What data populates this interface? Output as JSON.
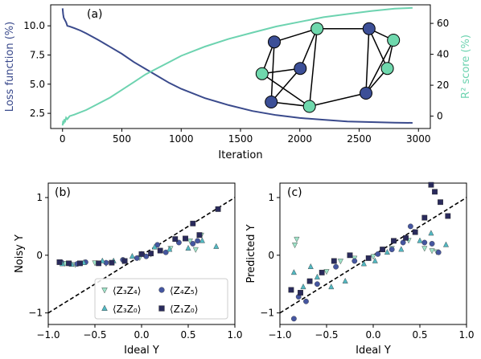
{
  "chart_data": [
    {
      "type": "line",
      "panel_label": "(a)",
      "xlabel": "Iteration",
      "ylabel_left": "Loss function (%)",
      "ylabel_right": "R² score (%)",
      "xlim": [
        -100,
        3100
      ],
      "ylim_left": [
        1.2,
        11.8
      ],
      "ylim_right": [
        -8,
        72
      ],
      "xticks": [
        "0",
        "500",
        "1000",
        "1500",
        "2000",
        "2500",
        "3000"
      ],
      "yticks_left": [
        "2.5",
        "5.0",
        "7.5",
        "10.0"
      ],
      "yticks_right": [
        "0",
        "20",
        "40",
        "60"
      ],
      "colors": {
        "loss": "#3a4a8c",
        "r2": "#6dd3b0"
      },
      "series": [
        {
          "name": "Loss function (%)",
          "axis": "left",
          "x": [
            0,
            5,
            10,
            20,
            30,
            40,
            60,
            100,
            150,
            200,
            300,
            400,
            500,
            600,
            700,
            800,
            900,
            1000,
            1200,
            1400,
            1600,
            1800,
            2000,
            2200,
            2400,
            2600,
            2800,
            2950
          ],
          "values": [
            11.5,
            11.0,
            10.7,
            10.5,
            10.3,
            10.0,
            9.95,
            9.8,
            9.6,
            9.35,
            8.8,
            8.2,
            7.6,
            6.9,
            6.3,
            5.7,
            5.1,
            4.6,
            3.8,
            3.2,
            2.7,
            2.35,
            2.1,
            1.95,
            1.8,
            1.75,
            1.7,
            1.68
          ]
        },
        {
          "name": "R² score (%)",
          "axis": "right",
          "x": [
            0,
            5,
            10,
            15,
            20,
            30,
            40,
            60,
            100,
            200,
            300,
            400,
            500,
            600,
            700,
            800,
            900,
            1000,
            1200,
            1400,
            1600,
            1800,
            2000,
            2200,
            2400,
            2600,
            2800,
            2950
          ],
          "values": [
            -6,
            -3,
            -5,
            -2,
            -4,
            -1,
            -2,
            0,
            1,
            4,
            8,
            12,
            17,
            22,
            27,
            31,
            35,
            39,
            45,
            50,
            54,
            58,
            61,
            64,
            66,
            68,
            69.5,
            70
          ]
        }
      ],
      "graph_nodes": [
        {
          "x": 0.1,
          "y": 0.22,
          "color": "dark"
        },
        {
          "x": 0.38,
          "y": 0.07,
          "color": "light"
        },
        {
          "x": 0.72,
          "y": 0.07,
          "color": "dark"
        },
        {
          "x": 0.88,
          "y": 0.2,
          "color": "light"
        },
        {
          "x": 0.02,
          "y": 0.58,
          "color": "light"
        },
        {
          "x": 0.27,
          "y": 0.52,
          "color": "dark"
        },
        {
          "x": 0.84,
          "y": 0.52,
          "color": "light"
        },
        {
          "x": 0.08,
          "y": 0.9,
          "color": "dark"
        },
        {
          "x": 0.33,
          "y": 0.95,
          "color": "light"
        },
        {
          "x": 0.7,
          "y": 0.8,
          "color": "dark"
        }
      ],
      "graph_edges": [
        [
          0,
          1
        ],
        [
          1,
          2
        ],
        [
          2,
          3
        ],
        [
          0,
          4
        ],
        [
          0,
          7
        ],
        [
          4,
          5
        ],
        [
          4,
          8
        ],
        [
          1,
          5
        ],
        [
          5,
          7
        ],
        [
          7,
          8
        ],
        [
          8,
          9
        ],
        [
          9,
          6
        ],
        [
          3,
          6
        ],
        [
          2,
          6
        ],
        [
          3,
          9
        ],
        [
          1,
          8
        ],
        [
          2,
          9
        ]
      ]
    },
    {
      "type": "scatter",
      "panel_label": "(b)",
      "xlabel": "Ideal Y",
      "ylabel": "Noisy Y",
      "xlim": [
        -1.0,
        1.0
      ],
      "ylim": [
        -1.2,
        1.25
      ],
      "xticks": [
        "−1.0",
        "−0.5",
        "0.0",
        "0.5",
        "1.0"
      ],
      "yticks": [
        "−1",
        "0",
        "1"
      ],
      "reference_line": "y = x (dashed)",
      "legend": {
        "placement": "lower-right",
        "entries": [
          {
            "label": "⟨Z₃Z₄⟩",
            "marker": "triangle-down",
            "color": "#9ee3c8"
          },
          {
            "label": "⟨Z₄Z₅⟩",
            "marker": "circle",
            "color": "#4556a0"
          },
          {
            "label": "⟨Z₃Z₀⟩",
            "marker": "triangle-up",
            "color": "#52b8c2"
          },
          {
            "label": "⟨Z₁Z₀⟩",
            "marker": "square",
            "color": "#2a2b5c"
          }
        ]
      },
      "series": [
        {
          "name": "⟨Z₃Z₄⟩",
          "marker": "triangle-down",
          "color": "#9ee3c8",
          "points": [
            [
              -0.82,
              -0.14
            ],
            [
              -0.71,
              -0.16
            ],
            [
              -0.5,
              -0.13
            ],
            [
              -0.38,
              -0.14
            ],
            [
              -0.2,
              -0.1
            ],
            [
              -0.02,
              -0.04
            ],
            [
              0.1,
              0.02
            ],
            [
              0.31,
              0.12
            ],
            [
              0.52,
              0.25
            ],
            [
              0.58,
              0.1
            ],
            [
              0.64,
              0.35
            ]
          ]
        },
        {
          "name": "⟨Z₄Z₅⟩",
          "marker": "circle",
          "color": "#4556a0",
          "points": [
            [
              -0.86,
              -0.12
            ],
            [
              -0.69,
              -0.15
            ],
            [
              -0.6,
              -0.12
            ],
            [
              -0.38,
              -0.13
            ],
            [
              -0.2,
              -0.08
            ],
            [
              -0.05,
              -0.05
            ],
            [
              0.05,
              -0.02
            ],
            [
              0.17,
              0.18
            ],
            [
              0.26,
              0.05
            ],
            [
              0.4,
              0.22
            ],
            [
              0.55,
              0.2
            ],
            [
              0.6,
              0.25
            ]
          ]
        },
        {
          "name": "⟨Z₃Z₀⟩",
          "marker": "triangle-up",
          "color": "#52b8c2",
          "points": [
            [
              -0.85,
              -0.15
            ],
            [
              -0.75,
              -0.16
            ],
            [
              -0.62,
              -0.13
            ],
            [
              -0.42,
              -0.1
            ],
            [
              -0.3,
              -0.1
            ],
            [
              -0.1,
              -0.02
            ],
            [
              0.0,
              0.02
            ],
            [
              0.14,
              0.14
            ],
            [
              0.3,
              0.1
            ],
            [
              0.5,
              0.12
            ],
            [
              0.65,
              0.25
            ],
            [
              0.8,
              0.15
            ]
          ]
        },
        {
          "name": "⟨Z₁Z₀⟩",
          "marker": "square",
          "color": "#2a2b5c",
          "points": [
            [
              -0.88,
              -0.12
            ],
            [
              -0.78,
              -0.14
            ],
            [
              -0.66,
              -0.14
            ],
            [
              -0.46,
              -0.14
            ],
            [
              -0.32,
              -0.13
            ],
            [
              -0.18,
              -0.1
            ],
            [
              0.0,
              0.02
            ],
            [
              0.1,
              0.03
            ],
            [
              0.2,
              0.08
            ],
            [
              0.36,
              0.28
            ],
            [
              0.47,
              0.29
            ],
            [
              0.55,
              0.55
            ],
            [
              0.62,
              0.35
            ],
            [
              0.82,
              0.8
            ]
          ]
        }
      ]
    },
    {
      "type": "scatter",
      "panel_label": "(c)",
      "xlabel": "Ideal Y",
      "ylabel": "Predicted Y",
      "xlim": [
        -1.0,
        1.0
      ],
      "ylim": [
        -1.2,
        1.25
      ],
      "xticks": [
        "−1.0",
        "−0.5",
        "0.0",
        "0.5",
        "1.0"
      ],
      "yticks": [
        "−1",
        "0",
        "1"
      ],
      "reference_line": "y = x (dashed)",
      "series": [
        {
          "name": "⟨Z₃Z₄⟩",
          "marker": "triangle-down",
          "color": "#9ee3c8",
          "points": [
            [
              -0.82,
              0.28
            ],
            [
              -0.84,
              0.18
            ],
            [
              -0.5,
              -0.28
            ],
            [
              -0.35,
              -0.1
            ],
            [
              -0.2,
              -0.05
            ],
            [
              0.0,
              -0.02
            ],
            [
              0.2,
              0.12
            ],
            [
              0.38,
              0.26
            ],
            [
              0.55,
              0.12
            ],
            [
              0.63,
              0.08
            ],
            [
              0.68,
              0.06
            ]
          ]
        },
        {
          "name": "⟨Z₄Z₅⟩",
          "marker": "circle",
          "color": "#4556a0",
          "points": [
            [
              -0.85,
              -1.1
            ],
            [
              -0.8,
              -0.72
            ],
            [
              -0.72,
              -0.8
            ],
            [
              -0.6,
              -0.5
            ],
            [
              -0.4,
              -0.2
            ],
            [
              -0.2,
              -0.1
            ],
            [
              0.05,
              0.02
            ],
            [
              0.2,
              0.1
            ],
            [
              0.32,
              0.22
            ],
            [
              0.4,
              0.5
            ],
            [
              0.55,
              0.22
            ],
            [
              0.63,
              0.2
            ],
            [
              0.7,
              0.05
            ]
          ]
        },
        {
          "name": "⟨Z₃Z₀⟩",
          "marker": "triangle-up",
          "color": "#52b8c2",
          "points": [
            [
              -0.85,
              -0.3
            ],
            [
              -0.75,
              -0.55
            ],
            [
              -0.67,
              -0.2
            ],
            [
              -0.6,
              -0.38
            ],
            [
              -0.45,
              -0.55
            ],
            [
              -0.3,
              -0.45
            ],
            [
              -0.1,
              -0.15
            ],
            [
              0.02,
              -0.1
            ],
            [
              0.15,
              0.05
            ],
            [
              0.3,
              0.1
            ],
            [
              0.5,
              0.25
            ],
            [
              0.62,
              0.38
            ],
            [
              0.78,
              0.18
            ]
          ]
        },
        {
          "name": "⟨Z₁Z₀⟩",
          "marker": "square",
          "color": "#2a2b5c",
          "points": [
            [
              -0.88,
              -0.6
            ],
            [
              -0.78,
              -0.65
            ],
            [
              -0.68,
              -0.45
            ],
            [
              -0.55,
              -0.3
            ],
            [
              -0.42,
              -0.1
            ],
            [
              -0.25,
              0.0
            ],
            [
              -0.05,
              -0.05
            ],
            [
              0.1,
              0.1
            ],
            [
              0.22,
              0.25
            ],
            [
              0.35,
              0.3
            ],
            [
              0.45,
              0.4
            ],
            [
              0.55,
              0.65
            ],
            [
              0.62,
              1.22
            ],
            [
              0.66,
              1.1
            ],
            [
              0.72,
              0.92
            ],
            [
              0.8,
              0.68
            ]
          ]
        }
      ]
    }
  ]
}
